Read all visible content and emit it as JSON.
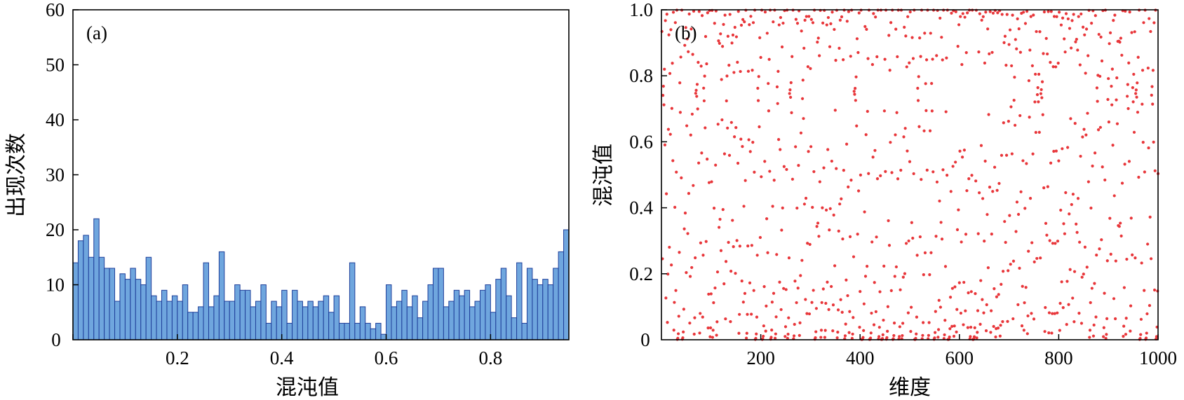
{
  "panel_a": {
    "tag": "(a)",
    "xlabel": "混沌值",
    "ylabel": "出现次数"
  },
  "panel_b": {
    "tag": "(b)",
    "xlabel": "维度",
    "ylabel": "混沌值"
  },
  "chart_data": [
    {
      "type": "bar",
      "title": "",
      "xlabel": "混沌值",
      "ylabel": "出现次数",
      "xlim": [
        0,
        0.95
      ],
      "ylim": [
        0,
        60
      ],
      "xticks": [
        "0",
        "0.2",
        "0.4",
        "0.6",
        "0.8"
      ],
      "yticks": [
        "10",
        "20",
        "30",
        "40",
        "50",
        "60"
      ],
      "bin_width": 0.01,
      "bin_start": 0,
      "bar_fill": "#6fa6de",
      "bar_edge": "#1f3f9a",
      "values": [
        14,
        18,
        19,
        15,
        22,
        15,
        13,
        13,
        7,
        12,
        11,
        13,
        11,
        10,
        15,
        8,
        7,
        9,
        7,
        8,
        7,
        10,
        5,
        5,
        6,
        14,
        6,
        8,
        16,
        7,
        7,
        10,
        9,
        9,
        6,
        7,
        10,
        3,
        7,
        6,
        9,
        3,
        9,
        7,
        6,
        7,
        6,
        7,
        8,
        5,
        8,
        3,
        3,
        14,
        3,
        6,
        3,
        2,
        3,
        1,
        10,
        6,
        7,
        9,
        6,
        8,
        4,
        7,
        10,
        13,
        13,
        6,
        7,
        9,
        8,
        9,
        6,
        7,
        9,
        10,
        5,
        11,
        13,
        8,
        4,
        14,
        3,
        13,
        11,
        10,
        11,
        10,
        13,
        16,
        20
      ]
    },
    {
      "type": "scatter",
      "title": "",
      "xlabel": "维度",
      "ylabel": "混沌值",
      "xlim": [
        0,
        1000
      ],
      "ylim": [
        0,
        1.0
      ],
      "xticks": [
        "200",
        "400",
        "600",
        "800",
        "1000"
      ],
      "yticks": [
        "0.2",
        "0.4",
        "0.6",
        "0.8",
        "1.0"
      ],
      "marker_color": "#e8363a",
      "n_points": 1000,
      "y_distribution": "chaotic map values in [0, 1], denser near 0 and 1"
    }
  ]
}
